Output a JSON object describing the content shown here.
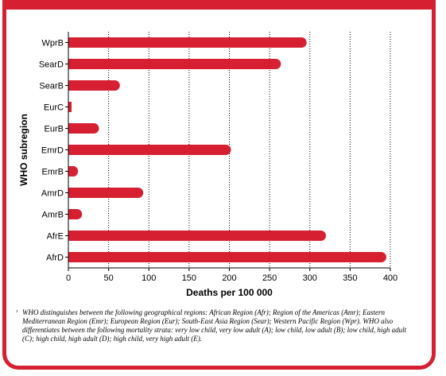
{
  "colors": {
    "accent": "#d62032",
    "bar": "#d62032",
    "grid": "#000000"
  },
  "chart_data": {
    "type": "bar",
    "orientation": "horizontal",
    "categories": [
      "WprB",
      "SearD",
      "SearB",
      "EurC",
      "EurB",
      "EmrD",
      "EmrB",
      "AmrD",
      "AmrB",
      "AfrE",
      "AfrD"
    ],
    "values": [
      296,
      264,
      64,
      4,
      38,
      202,
      12,
      93,
      17,
      320,
      395
    ],
    "xlabel": "Deaths per 100 000",
    "ylabel": "WHO subregion",
    "xlim": [
      0,
      400
    ],
    "xticks": [
      0,
      50,
      100,
      150,
      200,
      250,
      300,
      350,
      400
    ],
    "grid": "vertical dotted"
  },
  "footnote": {
    "marker": "¹",
    "text": "WHO distinguishes between the following geographical regions: African Region (Afr); Region of the Americas (Amr); Eastern Mediterranean Region (Emr); European Region (Eur); South-East Asia Region (Sear); Western Pacific Region (Wpr). WHO also differentiates between the following mortality strata: very low child, very low adult (A); low child, low adult (B); low child, high adult (C); high child, high adult (D); high child, very high adult (E)."
  }
}
